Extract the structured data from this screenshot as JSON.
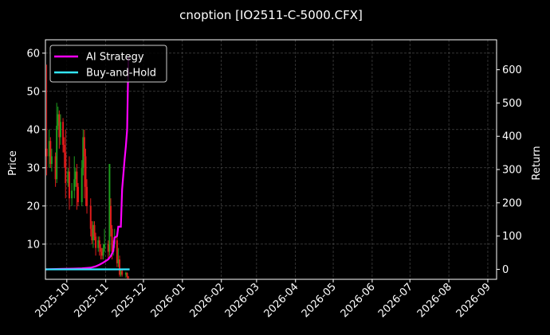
{
  "chart_data": {
    "type": "line",
    "title": "cnoption [IO2511-C-5000.CFX]",
    "ylabel": "Price",
    "y2label": "Return",
    "background": "#000000",
    "grid": true,
    "legend_placement": "top-left",
    "x_range": [
      "2025-09-14",
      "2026-09-08"
    ],
    "ylim": [
      0.8,
      63.5
    ],
    "y2lim": [
      -30,
      690
    ],
    "x_ticks": [
      "2025-10",
      "2025-11",
      "2025-12",
      "2026-01",
      "2026-02",
      "2026-03",
      "2026-04",
      "2026-05",
      "2026-06",
      "2026-07",
      "2026-08",
      "2026-09"
    ],
    "y_ticks": [
      10,
      20,
      30,
      40,
      50,
      60
    ],
    "y2_ticks": [
      0,
      100,
      200,
      300,
      400,
      500,
      600
    ],
    "series": [
      {
        "name": "AI Strategy",
        "color": "#ff00ff",
        "axis": "right",
        "x": [
          "2025-09-14",
          "2025-09-25",
          "2025-10-06",
          "2025-10-13",
          "2025-10-20",
          "2025-10-24",
          "2025-10-27",
          "2025-10-30",
          "2025-11-03",
          "2025-11-05",
          "2025-11-07",
          "2025-11-08",
          "2025-11-10",
          "2025-11-11",
          "2025-11-12",
          "2025-11-13",
          "2025-11-14",
          "2025-11-16",
          "2025-11-17",
          "2025-11-18",
          "2025-11-19"
        ],
        "values": [
          0,
          1,
          2,
          3,
          5,
          9,
          14,
          20,
          30,
          40,
          55,
          95,
          100,
          128,
          128,
          128,
          240,
          330,
          370,
          420,
          640
        ]
      },
      {
        "name": "Buy-and-Hold",
        "color": "#33e6ff",
        "axis": "right",
        "x": [
          "2025-09-14",
          "2025-11-20"
        ],
        "values": [
          0,
          0
        ]
      }
    ],
    "price_bars": {
      "up_color": "#1e9e1e",
      "down_color": "#e01b1b",
      "data": [
        [
          "2025-09-15",
          35,
          33,
          57,
          28
        ],
        [
          "2025-09-17",
          33,
          37,
          40,
          30
        ],
        [
          "2025-09-18",
          37,
          31,
          38,
          30
        ],
        [
          "2025-09-19",
          31,
          33,
          35,
          29
        ],
        [
          "2025-09-22",
          33,
          27,
          34,
          25
        ],
        [
          "2025-09-23",
          27,
          41,
          47,
          26
        ],
        [
          "2025-09-24",
          41,
          44,
          46,
          40
        ],
        [
          "2025-09-25",
          44,
          38,
          45,
          35
        ],
        [
          "2025-09-26",
          38,
          42,
          44,
          36
        ],
        [
          "2025-09-28",
          42,
          36,
          43,
          34
        ],
        [
          "2025-09-29",
          36,
          34,
          38,
          30
        ],
        [
          "2025-09-30",
          34,
          26,
          40,
          22
        ],
        [
          "2025-10-02",
          26,
          29,
          30,
          25
        ],
        [
          "2025-10-03",
          29,
          22,
          33,
          19
        ],
        [
          "2025-10-05",
          22,
          24,
          26,
          20
        ],
        [
          "2025-10-07",
          24,
          27,
          33,
          22
        ],
        [
          "2025-10-08",
          27,
          29,
          30,
          25
        ],
        [
          "2025-10-09",
          29,
          25,
          31,
          19
        ],
        [
          "2025-10-10",
          25,
          21,
          26,
          20
        ],
        [
          "2025-10-13",
          21,
          30,
          32,
          20
        ],
        [
          "2025-10-14",
          30,
          38,
          40,
          28
        ],
        [
          "2025-10-15",
          38,
          33,
          40,
          22
        ],
        [
          "2025-10-16",
          33,
          25,
          35,
          20
        ],
        [
          "2025-10-17",
          25,
          20,
          27,
          18
        ],
        [
          "2025-10-20",
          20,
          14,
          22,
          12
        ],
        [
          "2025-10-21",
          14,
          11,
          16,
          10
        ],
        [
          "2025-10-22",
          11,
          15,
          16,
          9
        ],
        [
          "2025-10-23",
          15,
          12,
          16,
          11
        ],
        [
          "2025-10-24",
          12,
          9,
          13,
          7
        ],
        [
          "2025-10-26",
          9,
          11,
          12,
          8
        ],
        [
          "2025-10-27",
          11,
          9,
          12,
          7
        ],
        [
          "2025-10-28",
          9,
          8,
          10,
          6
        ],
        [
          "2025-10-29",
          8,
          7,
          9,
          6
        ],
        [
          "2025-10-30",
          7,
          9,
          10,
          6
        ],
        [
          "2025-10-31",
          9,
          10,
          14,
          8
        ],
        [
          "2025-11-03",
          10,
          8,
          11,
          6
        ],
        [
          "2025-11-04",
          8,
          31,
          31,
          7
        ],
        [
          "2025-11-05",
          20,
          14,
          22,
          12
        ],
        [
          "2025-11-06",
          14,
          8,
          15,
          6
        ],
        [
          "2025-11-07",
          8,
          10,
          11,
          7
        ],
        [
          "2025-11-08",
          10,
          11,
          14,
          9
        ],
        [
          "2025-11-10",
          11,
          5,
          12,
          4
        ],
        [
          "2025-11-11",
          5,
          6,
          9,
          4
        ],
        [
          "2025-11-12",
          6,
          2,
          7,
          1.5
        ],
        [
          "2025-11-13",
          2,
          3,
          3.5,
          1.5
        ],
        [
          "2025-11-14",
          3,
          2,
          3.5,
          1.5
        ],
        [
          "2025-11-17",
          2,
          2.5,
          2.8,
          1.2
        ],
        [
          "2025-11-18",
          2.5,
          1.5,
          2.6,
          1
        ],
        [
          "2025-11-19",
          1.5,
          1.2,
          1.6,
          0.9
        ]
      ]
    }
  }
}
